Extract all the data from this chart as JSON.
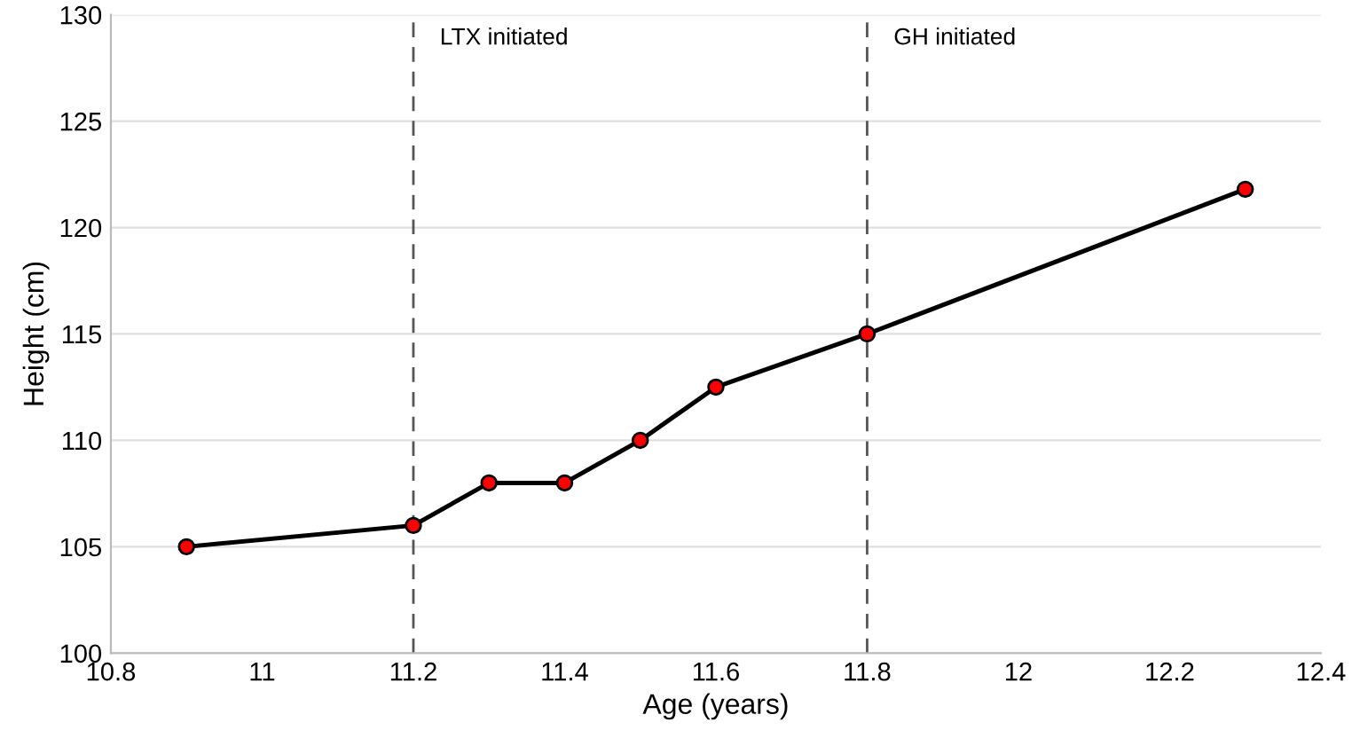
{
  "chart_data": {
    "type": "line",
    "xlabel": "Age (years)",
    "ylabel": "Height (cm)",
    "x": [
      10.9,
      11.2,
      11.3,
      11.4,
      11.5,
      11.6,
      11.8,
      12.3
    ],
    "series": [
      {
        "color": "#000000",
        "values": [
          105,
          106,
          108,
          108,
          110,
          112.5,
          115,
          121.8
        ]
      }
    ],
    "xlim": [
      10.8,
      12.4
    ],
    "xticks": [
      10.8,
      11,
      11.2,
      11.4,
      11.6,
      11.8,
      12,
      12.2,
      12.4
    ],
    "ylim": [
      100,
      130
    ],
    "yticks": [
      100,
      105,
      110,
      115,
      120,
      125,
      130
    ],
    "grid": "y",
    "marker": "circle",
    "line_style": "solid",
    "ref_lines": [
      {
        "axis": "x",
        "value": 11.2,
        "label": "LTX initiated",
        "color": "#555555",
        "line_style": "dashed"
      },
      {
        "axis": "x",
        "value": 11.8,
        "label": "GH initiated",
        "color": "#555555",
        "line_style": "dashed"
      }
    ]
  }
}
